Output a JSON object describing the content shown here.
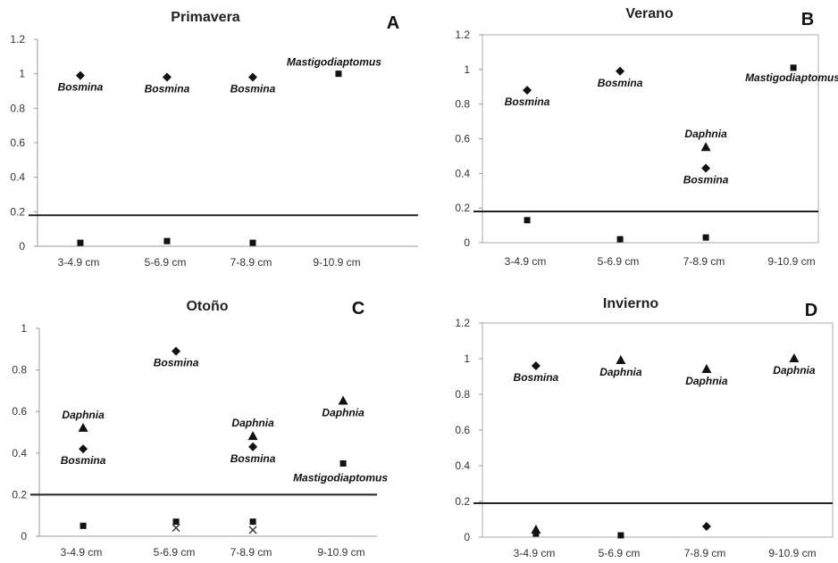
{
  "chart_data": [
    {
      "type": "scatter",
      "title": "Primavera",
      "panel": "A",
      "categories": [
        "3-4.9 cm",
        "5-6.9 cm",
        "7-8.9 cm",
        "9-10.9 cm"
      ],
      "ylim": [
        0,
        1.2
      ],
      "yticks": [
        "0",
        "0.2",
        "0.4",
        "0.6",
        "0.8",
        "1",
        "1.2"
      ],
      "hline": 0.18,
      "frame": "left-bottom",
      "points": [
        {
          "cat": 0,
          "y": 0.99,
          "marker": "diamond",
          "label": "Bosmina",
          "label_pos": "below"
        },
        {
          "cat": 0,
          "y": 0.02,
          "marker": "square"
        },
        {
          "cat": 1,
          "y": 0.98,
          "marker": "diamond",
          "label": "Bosmina",
          "label_pos": "below"
        },
        {
          "cat": 1,
          "y": 0.03,
          "marker": "square"
        },
        {
          "cat": 2,
          "y": 0.98,
          "marker": "diamond",
          "label": "Bosmina",
          "label_pos": "below"
        },
        {
          "cat": 2,
          "y": 0.02,
          "marker": "square"
        },
        {
          "cat": 3,
          "y": 1.0,
          "marker": "square",
          "label": "Mastigodiaptomus",
          "label_pos": "above"
        }
      ]
    },
    {
      "type": "scatter",
      "title": "Verano",
      "panel": "B",
      "categories": [
        "3-4.9 cm",
        "5-6.9 cm",
        "7-8.9 cm",
        "9-10.9 cm"
      ],
      "ylim": [
        0,
        1.2
      ],
      "yticks": [
        "0",
        "0.2",
        "0.4",
        "0.6",
        "0.8",
        "1",
        "1.2"
      ],
      "hline": 0.18,
      "frame": "box",
      "points": [
        {
          "cat": 0,
          "y": 0.88,
          "marker": "diamond",
          "label": "Bosmina",
          "label_pos": "below"
        },
        {
          "cat": 0,
          "y": 0.13,
          "marker": "square"
        },
        {
          "cat": 1,
          "y": 0.99,
          "marker": "diamond",
          "label": "Bosmina",
          "label_pos": "below"
        },
        {
          "cat": 1,
          "y": 0.02,
          "marker": "square"
        },
        {
          "cat": 2,
          "y": 0.55,
          "marker": "triangle",
          "label": "Daphnia",
          "label_pos": "above"
        },
        {
          "cat": 2,
          "y": 0.43,
          "marker": "diamond",
          "label": "Bosmina",
          "label_pos": "below"
        },
        {
          "cat": 2,
          "y": 0.03,
          "marker": "square"
        },
        {
          "cat": 3,
          "y": 1.01,
          "marker": "square",
          "label": "Mastigodiaptomus",
          "label_pos": "below"
        }
      ]
    },
    {
      "type": "scatter",
      "title": "Otoño",
      "panel": "C",
      "categories": [
        "3-4.9 cm",
        "5-6.9 cm",
        "7-8.9 cm",
        "9-10.9 cm"
      ],
      "ylim": [
        0,
        1
      ],
      "yticks": [
        "0",
        "0.2",
        "0.4",
        "0.6",
        "0.8",
        "1"
      ],
      "hline": 0.2,
      "frame": "left-bottom",
      "points": [
        {
          "cat": 0,
          "y": 0.52,
          "marker": "triangle",
          "label": "Daphnia",
          "label_pos": "above"
        },
        {
          "cat": 0,
          "y": 0.42,
          "marker": "diamond",
          "label": "Bosmina",
          "label_pos": "below"
        },
        {
          "cat": 0,
          "y": 0.05,
          "marker": "square"
        },
        {
          "cat": 1,
          "y": 0.89,
          "marker": "diamond",
          "label": "Bosmina",
          "label_pos": "below"
        },
        {
          "cat": 1,
          "y": 0.07,
          "marker": "square"
        },
        {
          "cat": 1,
          "y": 0.04,
          "marker": "x"
        },
        {
          "cat": 2,
          "y": 0.48,
          "marker": "triangle",
          "label": "Daphnia",
          "label_pos": "above"
        },
        {
          "cat": 2,
          "y": 0.43,
          "marker": "diamond",
          "label": "Bosmina",
          "label_pos": "below"
        },
        {
          "cat": 2,
          "y": 0.07,
          "marker": "square"
        },
        {
          "cat": 2,
          "y": 0.03,
          "marker": "x"
        },
        {
          "cat": 3,
          "y": 0.65,
          "marker": "triangle",
          "label": "Daphnia",
          "label_pos": "below"
        },
        {
          "cat": 3,
          "y": 0.35,
          "marker": "square",
          "label": "Mastigodiaptomus",
          "label_pos": "below"
        }
      ]
    },
    {
      "type": "scatter",
      "title": "Invierno",
      "panel": "D",
      "categories": [
        "3-4.9 cm",
        "5-6.9 cm",
        "7-8.9 cm",
        "9-10.9 cm"
      ],
      "ylim": [
        0,
        1.2
      ],
      "yticks": [
        "0",
        "0.2",
        "0.4",
        "0.6",
        "0.8",
        "1",
        "1.2"
      ],
      "hline": 0.19,
      "frame": "box",
      "points": [
        {
          "cat": 0,
          "y": 0.96,
          "marker": "diamond",
          "label": "Bosmina",
          "label_pos": "below"
        },
        {
          "cat": 0,
          "y": 0.04,
          "marker": "triangle"
        },
        {
          "cat": 0,
          "y": 0.02,
          "marker": "square"
        },
        {
          "cat": 1,
          "y": 0.99,
          "marker": "triangle",
          "label": "Daphnia",
          "label_pos": "below"
        },
        {
          "cat": 1,
          "y": 0.01,
          "marker": "square"
        },
        {
          "cat": 2,
          "y": 0.94,
          "marker": "triangle",
          "label": "Daphnia",
          "label_pos": "below"
        },
        {
          "cat": 2,
          "y": 0.06,
          "marker": "diamond"
        },
        {
          "cat": 3,
          "y": 1.0,
          "marker": "triangle",
          "label": "Daphnia",
          "label_pos": "below"
        }
      ]
    }
  ]
}
